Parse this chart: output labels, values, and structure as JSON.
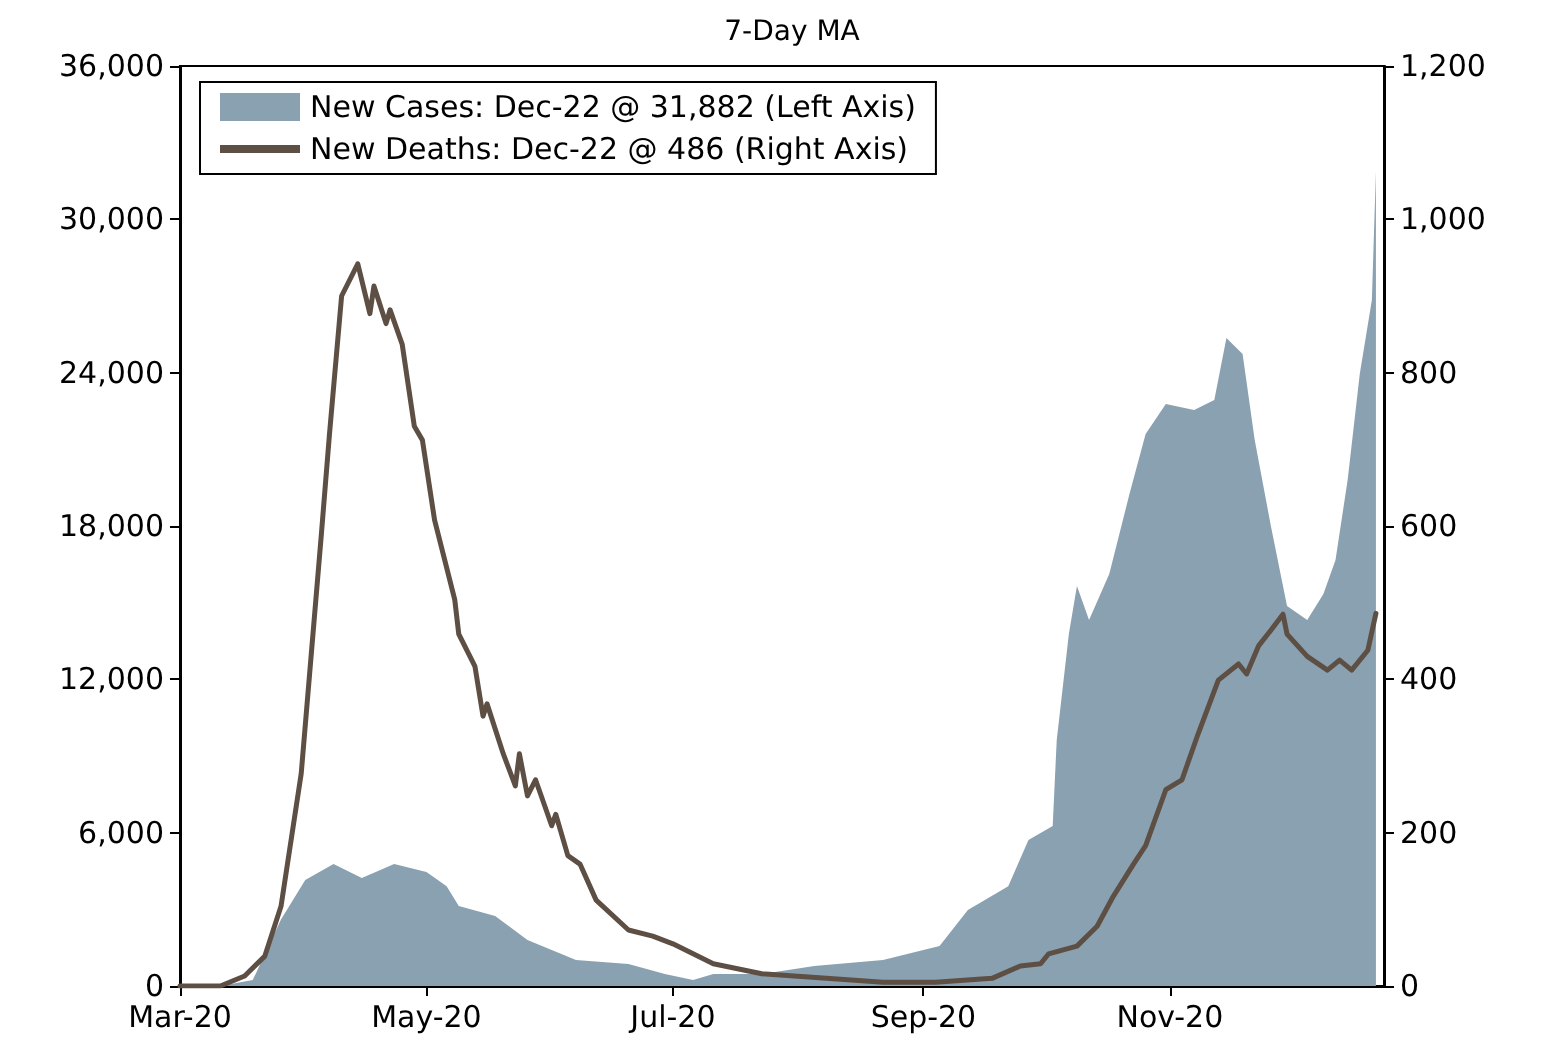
{
  "chart_data": {
    "type": "area",
    "title": "7-Day MA",
    "xlim": [
      "2020-03-01",
      "2020-12-24"
    ],
    "xticks": [
      {
        "value": "2020-03-01",
        "label": "Mar-20"
      },
      {
        "value": "2020-05-01",
        "label": "May-20"
      },
      {
        "value": "2020-07-01",
        "label": "Jul-20"
      },
      {
        "value": "2020-09-01",
        "label": "Sep-20"
      },
      {
        "value": "2020-11-01",
        "label": "Nov-20"
      }
    ],
    "ylim": [
      0,
      36000
    ],
    "yticks": [
      {
        "value": 0,
        "label": "0"
      },
      {
        "value": 6000,
        "label": "6,000"
      },
      {
        "value": 12000,
        "label": "12,000"
      },
      {
        "value": 18000,
        "label": "18,000"
      },
      {
        "value": 24000,
        "label": "24,000"
      },
      {
        "value": 30000,
        "label": "30,000"
      },
      {
        "value": 36000,
        "label": "36,000"
      }
    ],
    "y2lim": [
      0,
      1200
    ],
    "y2ticks": [
      {
        "value": 0,
        "label": "0"
      },
      {
        "value": 200,
        "label": "200"
      },
      {
        "value": 400,
        "label": "400"
      },
      {
        "value": 600,
        "label": "600"
      },
      {
        "value": 800,
        "label": "800"
      },
      {
        "value": 1000,
        "label": "1,000"
      },
      {
        "value": 1200,
        "label": "1,200"
      }
    ],
    "grid": false,
    "legend": "top left",
    "marker": "none",
    "series": [
      {
        "name": "New Cases: Dec-22 @ 31,882 (Left Axis)",
        "color": "#8aa1b1",
        "x": [
          "2020-03-01",
          "2020-03-11",
          "2020-03-19",
          "2020-03-26",
          "2020-04-01",
          "2020-04-08",
          "2020-04-15",
          "2020-04-23",
          "2020-05-01",
          "2020-05-06",
          "2020-05-09",
          "2020-05-18",
          "2020-05-26",
          "2020-06-07",
          "2020-06-20",
          "2020-06-29",
          "2020-07-06",
          "2020-07-11",
          "2020-07-23",
          "2020-08-05",
          "2020-08-22",
          "2020-09-05",
          "2020-09-12",
          "2020-09-22",
          "2020-09-27",
          "2020-10-03",
          "2020-10-04",
          "2020-10-07",
          "2020-10-09",
          "2020-10-12",
          "2020-10-17",
          "2020-10-22",
          "2020-10-26",
          "2020-10-31",
          "2020-11-07",
          "2020-11-12",
          "2020-11-15",
          "2020-11-19",
          "2020-11-22",
          "2020-11-26",
          "2020-11-30",
          "2020-12-05",
          "2020-12-09",
          "2020-12-12",
          "2020-12-15",
          "2020-12-18",
          "2020-12-21",
          "2020-12-22"
        ],
        "values": [
          0,
          0,
          230,
          2600,
          4150,
          4770,
          4230,
          4770,
          4460,
          3900,
          3130,
          2740,
          1800,
          1020,
          860,
          470,
          230,
          470,
          470,
          780,
          1020,
          1570,
          2970,
          3900,
          5710,
          6260,
          9630,
          13770,
          15650,
          14320,
          16120,
          19250,
          21600,
          22770,
          22540,
          22930,
          25360,
          24730,
          21370,
          18000,
          14870,
          14320,
          15340,
          16670,
          19800,
          23950,
          26840,
          31882
        ]
      },
      {
        "name": "New Deaths: Dec-22 @ 486 (Right Axis)",
        "type": "line",
        "axis": "y2",
        "color": "#5e4f45",
        "x": [
          "2020-03-01",
          "2020-03-11",
          "2020-03-17",
          "2020-03-22",
          "2020-03-26",
          "2020-03-31",
          "2020-04-05",
          "2020-04-07",
          "2020-04-10",
          "2020-04-14",
          "2020-04-17",
          "2020-04-18",
          "2020-04-21",
          "2020-04-22",
          "2020-04-25",
          "2020-04-28",
          "2020-04-30",
          "2020-05-03",
          "2020-05-08",
          "2020-05-09",
          "2020-05-13",
          "2020-05-15",
          "2020-05-16",
          "2020-05-20",
          "2020-05-23",
          "2020-05-24",
          "2020-05-26",
          "2020-05-28",
          "2020-06-01",
          "2020-06-02",
          "2020-06-05",
          "2020-06-08",
          "2020-06-12",
          "2020-06-20",
          "2020-06-26",
          "2020-07-01",
          "2020-07-11",
          "2020-07-23",
          "2020-08-08",
          "2020-08-22",
          "2020-09-04",
          "2020-09-18",
          "2020-09-25",
          "2020-09-30",
          "2020-10-02",
          "2020-10-09",
          "2020-10-14",
          "2020-10-18",
          "2020-10-23",
          "2020-10-26",
          "2020-10-31",
          "2020-11-04",
          "2020-11-08",
          "2020-11-13",
          "2020-11-18",
          "2020-11-20",
          "2020-11-23",
          "2020-11-26",
          "2020-11-29",
          "2020-11-30",
          "2020-12-05",
          "2020-12-10",
          "2020-12-13",
          "2020-12-16",
          "2020-12-20",
          "2020-12-22"
        ],
        "values": [
          0,
          0,
          13,
          39,
          104,
          277,
          590,
          720,
          900,
          942,
          877,
          913,
          864,
          882,
          837,
          730,
          712,
          608,
          504,
          459,
          417,
          352,
          368,
          303,
          261,
          303,
          248,
          269,
          209,
          224,
          170,
          159,
          112,
          73,
          65,
          55,
          29,
          16,
          10,
          5,
          5,
          10,
          26,
          29,
          42,
          52,
          78,
          117,
          159,
          183,
          256,
          269,
          329,
          399,
          420,
          407,
          444,
          464,
          485,
          459,
          430,
          412,
          425,
          412,
          438,
          486
        ]
      }
    ]
  }
}
